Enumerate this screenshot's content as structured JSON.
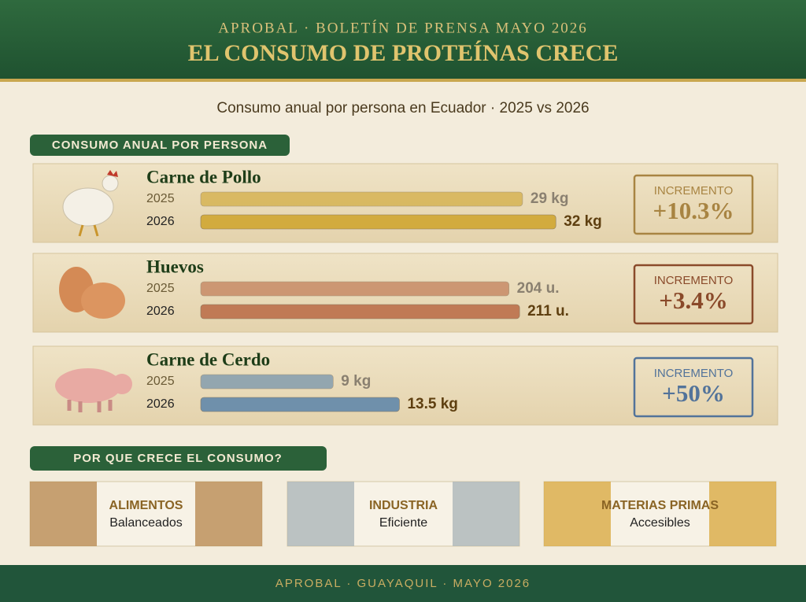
{
  "header": {
    "kicker": "APROBAL · BOLETÍN DE PRENSA MAYO 2026",
    "title": "EL CONSUMO DE PROTEÍNAS CRECE"
  },
  "subtitle": "Consumo anual por persona en Ecuador · 2025 vs 2026",
  "section_label": "CONSUMO ANUAL POR PERSONA",
  "products": [
    {
      "name": "Carne de Pollo",
      "color": "#d2ab3e",
      "rows": [
        {
          "year": "2025",
          "value": 29,
          "value_label": "29 kg"
        },
        {
          "year": "2026",
          "value": 32,
          "value_label": "32 kg"
        }
      ],
      "increase_label": "INCREMENTO",
      "increase": "+10.3%"
    },
    {
      "name": "Huevos",
      "color": "#c07a55",
      "rows": [
        {
          "year": "2025",
          "value": 204,
          "value_label": "204 u."
        },
        {
          "year": "2026",
          "value": 211,
          "value_label": "211 u."
        }
      ],
      "increase_label": "INCREMENTO",
      "increase": "+3.4%"
    },
    {
      "name": "Carne de Cerdo",
      "color": "#6f90ab",
      "rows": [
        {
          "year": "2025",
          "value": 9,
          "value_label": "9 kg"
        },
        {
          "year": "2026",
          "value": 13.5,
          "value_label": "13.5 kg"
        }
      ],
      "increase_label": "INCREMENTO",
      "increase": "+50%"
    }
  ],
  "reasons_label": "POR QUE CRECE EL CONSUMO?",
  "reasons": [
    {
      "title": "ALIMENTOS",
      "subtitle": "Balanceados"
    },
    {
      "title": "INDUSTRIA",
      "subtitle": "Eficiente"
    },
    {
      "title": "MATERIAS PRIMAS",
      "subtitle": "Accesibles"
    }
  ],
  "footer": "APROBAL · GUAYAQUIL · MAYO 2026"
}
